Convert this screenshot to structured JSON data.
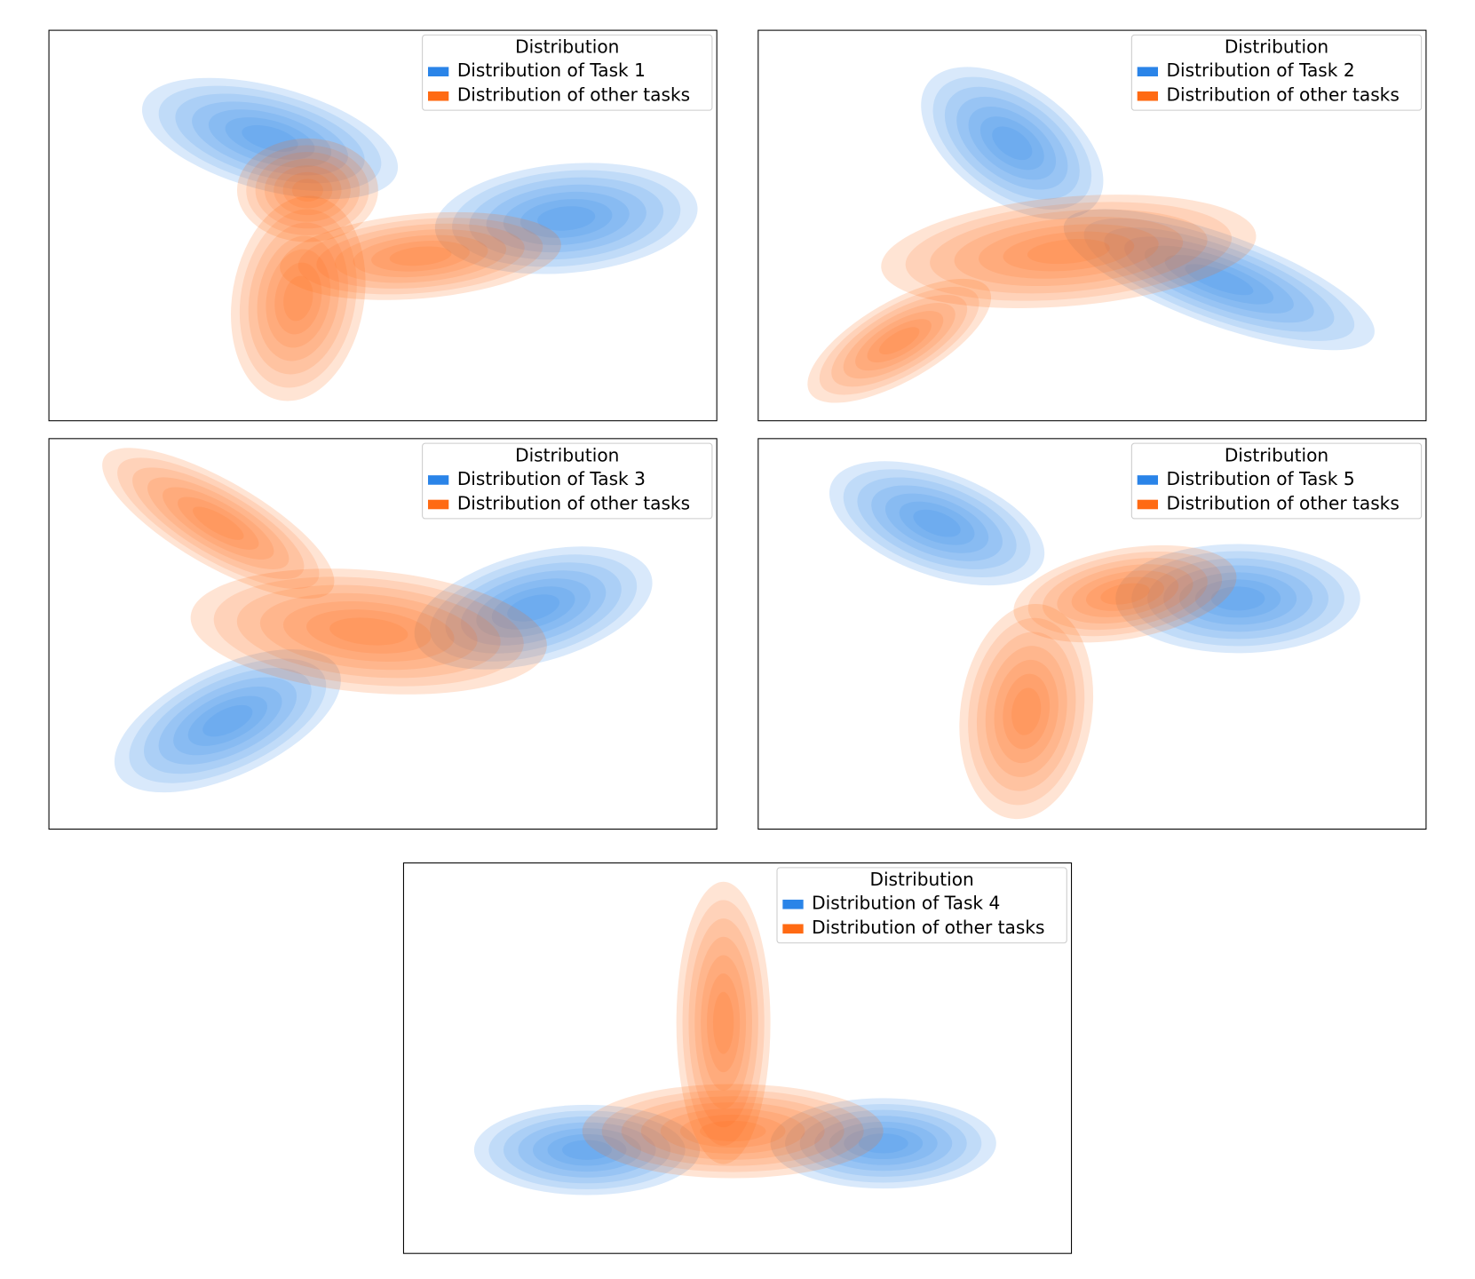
{
  "chart_data": [
    {
      "type": "kde",
      "legend_title": "Distribution",
      "legend_loc": "upper right",
      "series": [
        {
          "name": "Distribution of Task 1",
          "color": "#2a84e8"
        },
        {
          "name": "Distribution of other tasks",
          "color": "#ff6a13"
        }
      ]
    },
    {
      "type": "kde",
      "legend_title": "Distribution",
      "legend_loc": "upper right",
      "series": [
        {
          "name": "Distribution of Task 2",
          "color": "#2a84e8"
        },
        {
          "name": "Distribution of other tasks",
          "color": "#ff6a13"
        }
      ]
    },
    {
      "type": "kde",
      "legend_title": "Distribution",
      "legend_loc": "upper right",
      "series": [
        {
          "name": "Distribution of Task 3",
          "color": "#2a84e8"
        },
        {
          "name": "Distribution of other tasks",
          "color": "#ff6a13"
        }
      ]
    },
    {
      "type": "kde",
      "legend_title": "Distribution",
      "legend_loc": "upper right",
      "series": [
        {
          "name": "Distribution of Task 5",
          "color": "#2a84e8"
        },
        {
          "name": "Distribution of other tasks",
          "color": "#ff6a13"
        }
      ]
    },
    {
      "type": "kde",
      "legend_title": "Distribution",
      "legend_loc": "upper right",
      "series": [
        {
          "name": "Distribution of Task 4",
          "color": "#2a84e8"
        },
        {
          "name": "Distribution of other tasks",
          "color": "#ff6a13"
        }
      ]
    }
  ]
}
